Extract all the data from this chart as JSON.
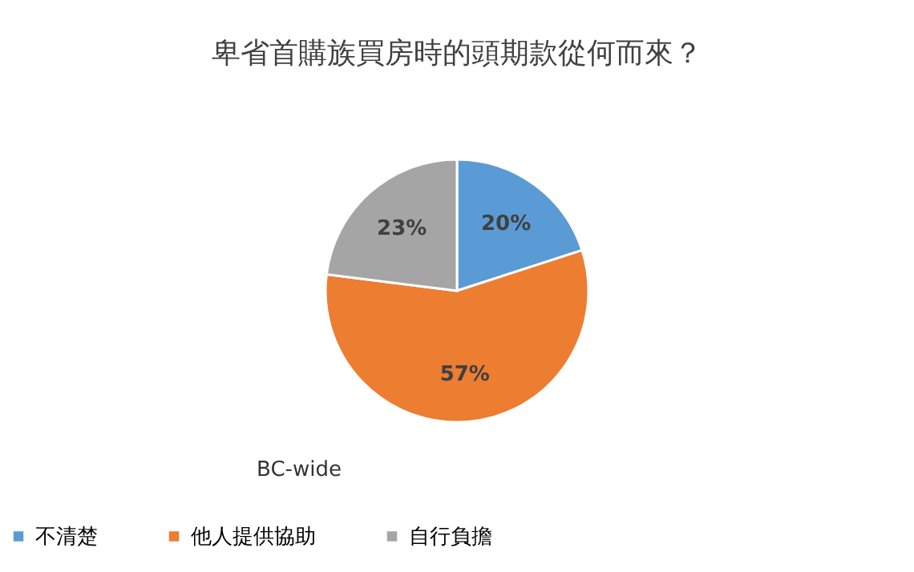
{
  "chart_data": {
    "type": "pie",
    "title": "卑省首購族買房時的頭期款從何而來？",
    "categories": [
      "不清楚",
      "他人提供協助",
      "自行負擔"
    ],
    "values": [
      20,
      57,
      23
    ],
    "colors": [
      "#5b9bd5",
      "#ed7d31",
      "#a5a5a5"
    ],
    "value_labels": [
      "20%",
      "57%",
      "23%"
    ],
    "annotations": [
      "BC-wide"
    ],
    "legend": "bottom"
  }
}
